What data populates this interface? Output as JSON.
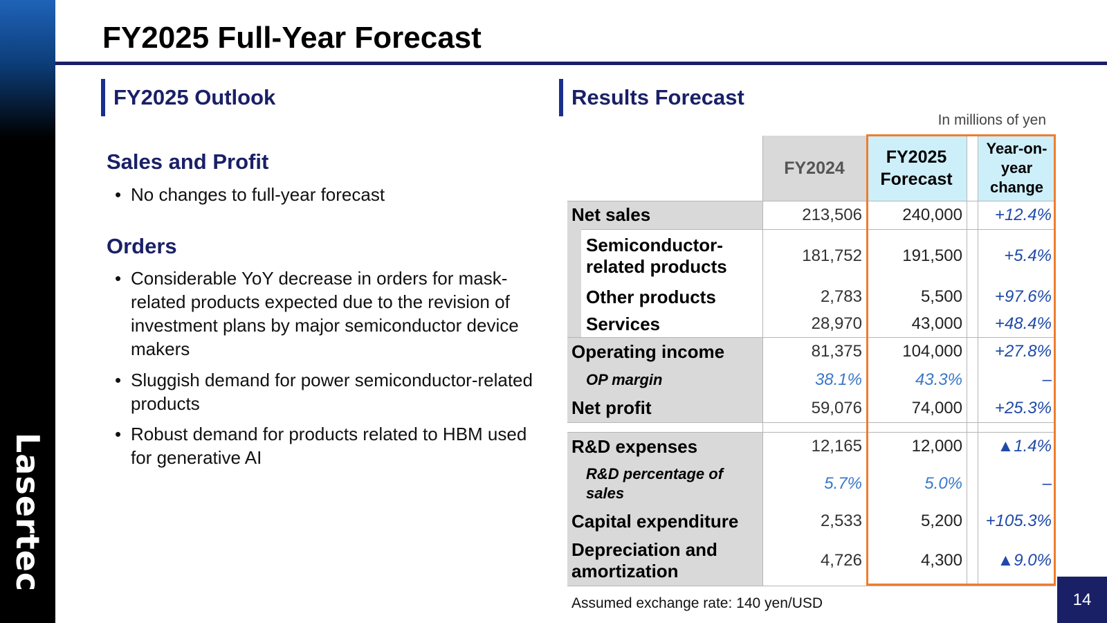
{
  "brand": "Lasertec",
  "title": "FY2025 Full-Year Forecast",
  "page_number": "14",
  "outlook": {
    "heading": "FY2025 Outlook",
    "sales_profit": {
      "heading": "Sales and Profit",
      "bullets": [
        "No changes to full-year forecast"
      ]
    },
    "orders": {
      "heading": "Orders",
      "bullets": [
        "Considerable YoY decrease in orders for mask-related products expected due to the revision of investment plans by major semiconductor device makers",
        "Sluggish demand for power semiconductor-related products",
        "Robust demand for products related to HBM used for generative AI"
      ]
    }
  },
  "forecast": {
    "heading": "Results Forecast",
    "unit": "In millions of yen",
    "columns": [
      "FY2024",
      "FY2025 Forecast",
      "Year-on-year change"
    ],
    "rows": [
      {
        "label": "Net sales",
        "fy2024": "213,506",
        "fy2025": "240,000",
        "change": "+12.4%"
      },
      {
        "label": "Semiconductor-related products",
        "fy2024": "181,752",
        "fy2025": "191,500",
        "change": "+5.4%"
      },
      {
        "label": "Other products",
        "fy2024": "2,783",
        "fy2025": "5,500",
        "change": "+97.6%"
      },
      {
        "label": "Services",
        "fy2024": "28,970",
        "fy2025": "43,000",
        "change": "+48.4%"
      },
      {
        "label": "Operating income",
        "fy2024": "81,375",
        "fy2025": "104,000",
        "change": "+27.8%"
      },
      {
        "label": "OP margin",
        "fy2024": "38.1%",
        "fy2025": "43.3%",
        "change": "–"
      },
      {
        "label": "Net profit",
        "fy2024": "59,076",
        "fy2025": "74,000",
        "change": "+25.3%"
      },
      {
        "label": "R&D expenses",
        "fy2024": "12,165",
        "fy2025": "12,000",
        "change": "▲1.4%"
      },
      {
        "label": "R&D percentage of sales",
        "fy2024": "5.7%",
        "fy2025": "5.0%",
        "change": "–"
      },
      {
        "label": "Capital expenditure",
        "fy2024": "2,533",
        "fy2025": "5,200",
        "change": "+105.3%"
      },
      {
        "label": "Depreciation and amortization",
        "fy2024": "4,726",
        "fy2025": "4,300",
        "change": "▲9.0%"
      }
    ],
    "footnote": "Assumed exchange rate: 140 yen/USD"
  },
  "colors": {
    "navy": "#1a2066",
    "highlight_border": "#ee7d2e",
    "header_light_blue": "#cdeff9",
    "cell_gray": "#d9d9d9",
    "change_blue": "#1f4aa8",
    "ratio_blue": "#3a78c9"
  }
}
